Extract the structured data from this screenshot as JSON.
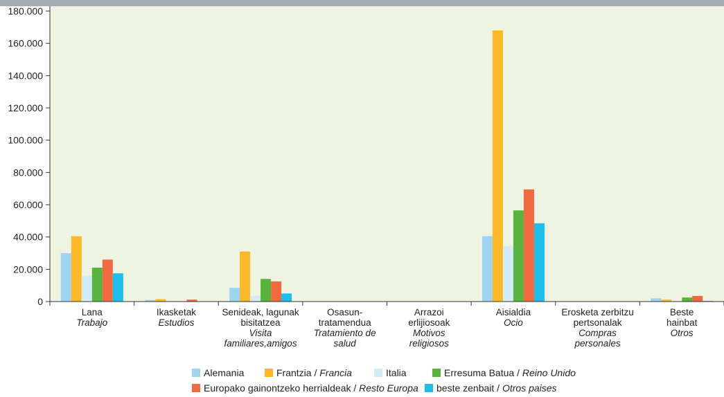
{
  "chart_data": {
    "type": "bar",
    "ylim": [
      0,
      180000
    ],
    "yticks": [
      0,
      20000,
      40000,
      60000,
      80000,
      100000,
      120000,
      140000,
      160000,
      180000
    ],
    "ytick_labels": [
      "0",
      "20.000",
      "40.000",
      "60.000",
      "80.000",
      "100.000",
      "120.000",
      "140.000",
      "160.000",
      "180.000"
    ],
    "categories": [
      {
        "basque": "Lana",
        "spanish": "Trabajo"
      },
      {
        "basque": "Ikasketak",
        "spanish": "Estudios"
      },
      {
        "basque": "Senideak, lagunak bisitatzea",
        "spanish": "Visita familiares,amigos"
      },
      {
        "basque": "Osasun-tratamendua",
        "spanish": "Tratamiento de salud"
      },
      {
        "basque": "Arrazoi erlijiosoak",
        "spanish": "Motivos religiosos"
      },
      {
        "basque": "Aisialdia",
        "spanish": "Ocio"
      },
      {
        "basque": "Erosketa zerbitzu pertsonalak",
        "spanish": "Compras personales"
      },
      {
        "basque": "Beste hainbat",
        "spanish": "Otros"
      }
    ],
    "category_label_lines": [
      [
        {
          "t": "Lana",
          "i": false
        },
        {
          "t": "Trabajo",
          "i": true
        }
      ],
      [
        {
          "t": "Ikasketak",
          "i": false
        },
        {
          "t": "Estudios",
          "i": true
        }
      ],
      [
        {
          "t": "Senideak, lagunak",
          "i": false
        },
        {
          "t": "bisitatzea",
          "i": false
        },
        {
          "t": "Visita",
          "i": true
        },
        {
          "t": "familiares,amigos",
          "i": true
        }
      ],
      [
        {
          "t": "Osasun-",
          "i": false
        },
        {
          "t": "tratamendua",
          "i": false
        },
        {
          "t": "Tratamiento de",
          "i": true
        },
        {
          "t": "salud",
          "i": true
        }
      ],
      [
        {
          "t": "Arrazoi",
          "i": false
        },
        {
          "t": "erlijiosoak",
          "i": false
        },
        {
          "t": "Motivos",
          "i": true
        },
        {
          "t": "religiosos",
          "i": true
        }
      ],
      [
        {
          "t": "Aisialdia",
          "i": false
        },
        {
          "t": "Ocio",
          "i": true
        }
      ],
      [
        {
          "t": "Erosketa zerbitzu",
          "i": false
        },
        {
          "t": "pertsonalak",
          "i": false
        },
        {
          "t": "Compras",
          "i": true
        },
        {
          "t": "personales",
          "i": true
        }
      ],
      [
        {
          "t": "Beste",
          "i": false
        },
        {
          "t": "hainbat",
          "i": false
        },
        {
          "t": "Otros",
          "i": true
        }
      ]
    ],
    "series": [
      {
        "name": "Alemania",
        "name_es": "",
        "color": "#9fd3ef",
        "values": [
          30000,
          1000,
          8500,
          0,
          0,
          40500,
          0,
          2000
        ]
      },
      {
        "name": "Frantzia",
        "name_es": "Francia",
        "color": "#fbb829",
        "values": [
          40500,
          1500,
          31000,
          0,
          0,
          168000,
          0,
          1200
        ]
      },
      {
        "name": "Italia",
        "name_es": "",
        "color": "#d4ecf8",
        "values": [
          16000,
          300,
          3500,
          0,
          0,
          34500,
          0,
          300
        ]
      },
      {
        "name": "Erresuma Batua",
        "name_es": "Reino Unido",
        "color": "#5ab33e",
        "values": [
          21000,
          200,
          14000,
          0,
          0,
          56500,
          0,
          2500
        ]
      },
      {
        "name": "Europako gainontzeko herrialdeak",
        "name_es": "Resto Europa",
        "color": "#ef6a40",
        "values": [
          26000,
          1200,
          12500,
          0,
          0,
          69500,
          0,
          3500
        ]
      },
      {
        "name": "beste zenbait",
        "name_es": "Otros paises",
        "color": "#1ebdec",
        "values": [
          17500,
          200,
          5000,
          0,
          0,
          48500,
          0,
          400
        ]
      }
    ]
  }
}
